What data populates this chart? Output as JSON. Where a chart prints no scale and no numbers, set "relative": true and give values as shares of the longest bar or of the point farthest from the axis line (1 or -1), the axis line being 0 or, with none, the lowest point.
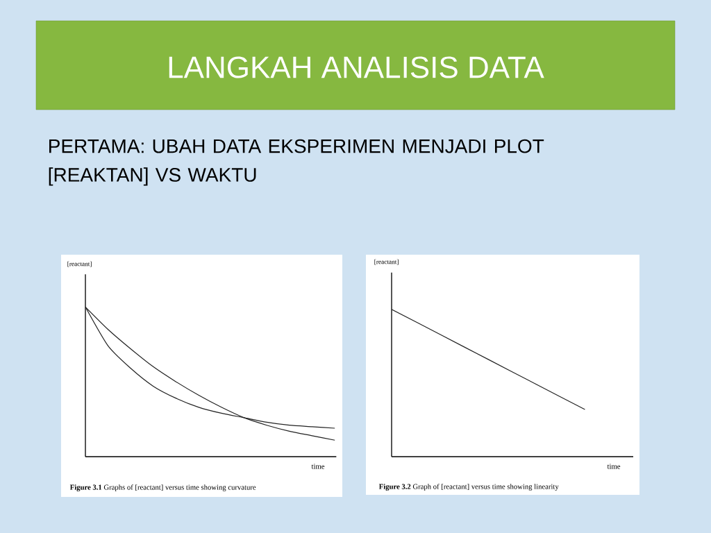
{
  "chart_data": [
    {
      "type": "line",
      "title": "LANGKAH ANALISIS DATA",
      "subtitle": "PERTAMA: UBAH DATA EKSPERIMEN MENJADI PLOT [REAKTAN] VS WAKTU",
      "relative": true,
      "ylabel": "[reactant]",
      "xlabel": "time",
      "annotations": [
        "**Figure 3.1** Graphs of [reactant] versus time showing curvature"
      ],
      "categories": [
        null,
        null,
        null,
        null,
        null,
        null,
        null,
        null,
        null,
        null,
        null,
        null
      ],
      "series": [
        {
          "color": "#222222",
          "values": [
            1,
            0.74,
            0.59,
            0.47,
            0.39,
            0.33,
            0.29,
            0.26,
            0.23,
            0.21,
            0.2,
            0.19
          ]
        },
        {
          "color": "#222222",
          "values": [
            1,
            0.85,
            0.72,
            0.6,
            0.5,
            0.41,
            0.33,
            0.26,
            0.21,
            0.17,
            0.14,
            0.11
          ]
        }
      ]
    },
    {
      "type": "line",
      "relative": true,
      "ylabel": "[reactant]",
      "xlabel": "time",
      "annotations": [
        "**Figure 3.2** Graph of [reactant] versus time showing linearity"
      ],
      "categories": [
        null,
        null,
        null,
        null,
        null,
        null
      ],
      "series": [
        {
          "color": "#222222",
          "values": [
            1,
            0.83,
            0.66,
            0.49,
            0.32,
            null
          ]
        }
      ]
    }
  ]
}
